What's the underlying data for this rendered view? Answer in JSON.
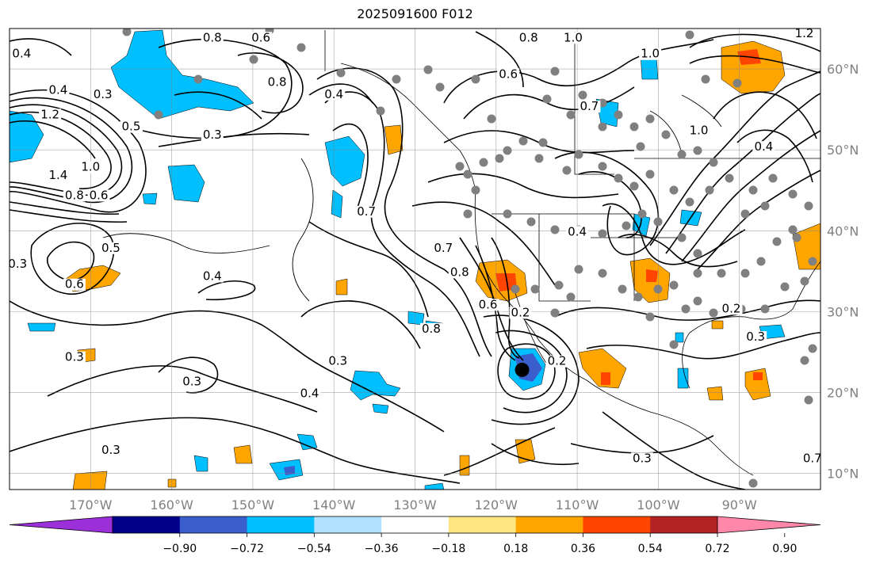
{
  "title": "2025091600 F012",
  "map": {
    "lon_range": [
      -180,
      -80
    ],
    "lat_range": [
      8,
      65
    ],
    "lon_ticks": [
      -170,
      -160,
      -150,
      -140,
      -130,
      -120,
      -110,
      -100,
      -90
    ],
    "lon_labels": [
      "170°W",
      "160°W",
      "150°W",
      "140°W",
      "130°W",
      "120°W",
      "110°W",
      "100°W",
      "90°W"
    ],
    "lat_ticks": [
      10,
      20,
      30,
      40,
      50,
      60
    ],
    "lat_labels": [
      "10°N",
      "20°N",
      "30°N",
      "40°N",
      "50°N",
      "60°N"
    ],
    "grid": true,
    "cyclone_marker": {
      "lon": -116.8,
      "lat": 22.8
    },
    "contour_labels": [
      {
        "text": "0.4",
        "lon": -178.5,
        "lat": 61.5
      },
      {
        "text": "0.8",
        "lon": -155,
        "lat": 63.5
      },
      {
        "text": "0.6",
        "lon": -149,
        "lat": 63.5
      },
      {
        "text": "0.8",
        "lon": -116,
        "lat": 63.5
      },
      {
        "text": "1.0",
        "lon": -110.5,
        "lat": 63.5
      },
      {
        "text": "1.2",
        "lon": -82,
        "lat": 64
      },
      {
        "text": "1.0",
        "lon": -101,
        "lat": 61.5
      },
      {
        "text": "0.6",
        "lon": -118.5,
        "lat": 59
      },
      {
        "text": "0.4",
        "lon": -174,
        "lat": 57
      },
      {
        "text": "0.3",
        "lon": -168.5,
        "lat": 56.5
      },
      {
        "text": "0.8",
        "lon": -147,
        "lat": 58
      },
      {
        "text": "0.4",
        "lon": -140,
        "lat": 56.5
      },
      {
        "text": "1.2",
        "lon": -175,
        "lat": 54
      },
      {
        "text": "0.5",
        "lon": -165,
        "lat": 52.5
      },
      {
        "text": "0.3",
        "lon": -155,
        "lat": 51.5
      },
      {
        "text": "0.7",
        "lon": -108.5,
        "lat": 55
      },
      {
        "text": "1.0",
        "lon": -95,
        "lat": 52
      },
      {
        "text": "0.4",
        "lon": -87,
        "lat": 50
      },
      {
        "text": "1.0",
        "lon": -170,
        "lat": 47.5
      },
      {
        "text": "1.4",
        "lon": -174,
        "lat": 46.5
      },
      {
        "text": "0.8",
        "lon": -172,
        "lat": 44
      },
      {
        "text": "0.6",
        "lon": -169,
        "lat": 44
      },
      {
        "text": "0.7",
        "lon": -136,
        "lat": 42
      },
      {
        "text": "0.5",
        "lon": -167.5,
        "lat": 37.5
      },
      {
        "text": "0.3",
        "lon": -179,
        "lat": 35.5
      },
      {
        "text": "0.6",
        "lon": -172,
        "lat": 33
      },
      {
        "text": "0.4",
        "lon": -155,
        "lat": 34
      },
      {
        "text": "0.7",
        "lon": -126.5,
        "lat": 37.5
      },
      {
        "text": "0.8",
        "lon": -124.5,
        "lat": 34.5
      },
      {
        "text": "0.4",
        "lon": -110,
        "lat": 39.5
      },
      {
        "text": "0.6",
        "lon": -121,
        "lat": 30.5
      },
      {
        "text": "0.8",
        "lon": -128,
        "lat": 27.5
      },
      {
        "text": "0.2",
        "lon": -117,
        "lat": 29.5
      },
      {
        "text": "0.2",
        "lon": -91,
        "lat": 30
      },
      {
        "text": "0.3",
        "lon": -88,
        "lat": 26.5
      },
      {
        "text": "0.3",
        "lon": -172,
        "lat": 24
      },
      {
        "text": "0.3",
        "lon": -139.5,
        "lat": 23.5
      },
      {
        "text": "0.2",
        "lon": -112.5,
        "lat": 23.5
      },
      {
        "text": "0.3",
        "lon": -157.5,
        "lat": 21
      },
      {
        "text": "0.4",
        "lon": -143,
        "lat": 19.5
      },
      {
        "text": "0.3",
        "lon": -167.5,
        "lat": 12.5
      },
      {
        "text": "0.3",
        "lon": -102,
        "lat": 11.5
      },
      {
        "text": "0.7",
        "lon": -81,
        "lat": 11.5
      }
    ]
  },
  "colorbar": {
    "colors": [
      "#9b30d9",
      "#00008b",
      "#3a5fcd",
      "#00bfff",
      "#b0e2ff",
      "#ffffff",
      "#ffe680",
      "#ffa500",
      "#ff4500",
      "#b22222",
      "#ff88aa"
    ],
    "labels": [
      "−0.90",
      "−0.72",
      "−0.54",
      "−0.36",
      "−0.18",
      "0.18",
      "0.36",
      "0.54",
      "0.72",
      "0.90"
    ]
  }
}
